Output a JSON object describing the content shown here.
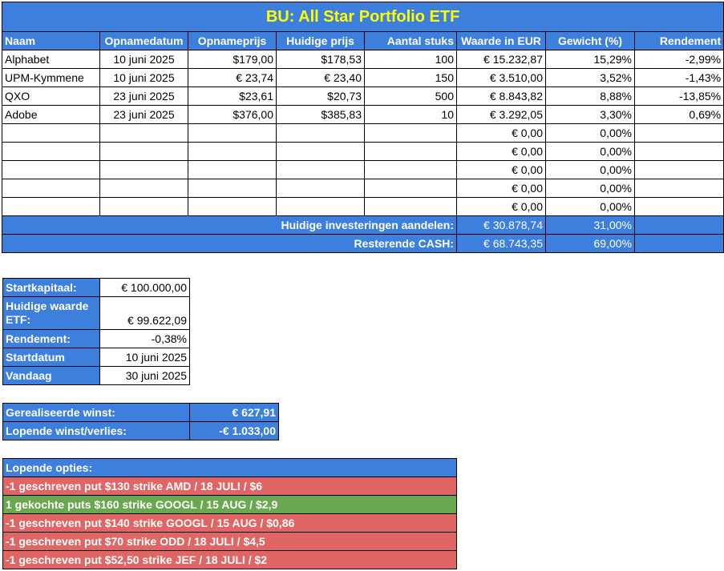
{
  "title": "BU: All Star Portfolio ETF",
  "headers": [
    "Naam",
    "Opnamedatum",
    "Opnameprijs",
    "Huidige prijs",
    "Aantal stuks",
    "Waarde in EUR",
    "Gewicht (%)",
    "Rendement"
  ],
  "rows": [
    [
      "Alphabet",
      "10 juni 2025",
      "$179,00",
      "$178,53",
      "100",
      "€ 15.232,87",
      "15,29%",
      "-2,99%"
    ],
    [
      "UPM-Kymmene",
      "10 juni 2025",
      "€ 23,74",
      "€ 23,40",
      "150",
      "€ 3.510,00",
      "3,52%",
      "-1,43%"
    ],
    [
      "QXO",
      "23 juni 2025",
      "$23,61",
      "$20,73",
      "500",
      "€ 8.843,82",
      "8,88%",
      "-13,85%"
    ],
    [
      "Adobe",
      "23 juni 2025",
      "$376,00",
      "$385,83",
      "10",
      "€ 3.292,05",
      "3,30%",
      "0,69%"
    ],
    [
      "",
      "",
      "",
      "",
      "",
      "€ 0,00",
      "0,00%",
      ""
    ],
    [
      "",
      "",
      "",
      "",
      "",
      "€ 0,00",
      "0,00%",
      ""
    ],
    [
      "",
      "",
      "",
      "",
      "",
      "€ 0,00",
      "0,00%",
      ""
    ],
    [
      "",
      "",
      "",
      "",
      "",
      "€ 0,00",
      "0,00%",
      ""
    ],
    [
      "",
      "",
      "",
      "",
      "",
      "€ 0,00",
      "0,00%",
      ""
    ]
  ],
  "totals": [
    {
      "label": "Huidige investeringen aandelen:",
      "value": "€ 30.878,74",
      "weight": "31,00%"
    },
    {
      "label": "Resterende CASH:",
      "value": "€ 68.743,35",
      "weight": "69,00%"
    }
  ],
  "summary": [
    {
      "label": "Startkapitaal:",
      "value": "€ 100.000,00"
    },
    {
      "label": "Huidige waarde ETF:",
      "value": "€ 99.622,09"
    },
    {
      "label": "Rendement:",
      "value": "-0,38%"
    },
    {
      "label": "Startdatum",
      "value": "10 juni 2025"
    },
    {
      "label": "Vandaag",
      "value": "30 juni 2025"
    }
  ],
  "winst": [
    {
      "label": "Gerealiseerde winst:",
      "value": "€ 627,91"
    },
    {
      "label": "Lopende winst/verlies:",
      "value": "-€ 1.033,00"
    }
  ],
  "options": {
    "header": "Lopende opties:",
    "items": [
      {
        "text": "-1 geschreven put $130 strike AMD / 18 JULI / $6",
        "status": "red"
      },
      {
        "text": "1 gekochte puts $160 strike GOOGL / 15 AUG / $2,9",
        "status": "green"
      },
      {
        "text": "-1 geschreven put $140 strike GOOGL / 15 AUG / $0,86",
        "status": "red"
      },
      {
        "text": "-1 geschreven put $70 strike ODD / 18 JULI / $4,5",
        "status": "red"
      },
      {
        "text": "-1 geschreven put $52,50 strike JEF / 18 JULI / $2",
        "status": "red"
      }
    ]
  },
  "colors": {
    "header_blue": "#3d7fdc",
    "title_yellow": "#ffff00",
    "loss_red": "#e06666",
    "gain_green": "#6aa84f"
  }
}
